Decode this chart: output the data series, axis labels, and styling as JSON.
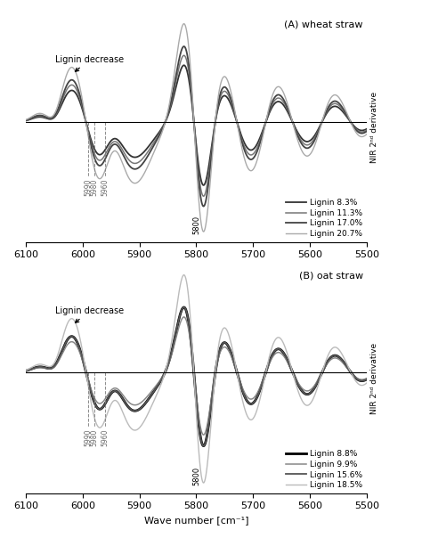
{
  "title_A": "(A) wheat straw",
  "title_B": "(B) oat straw",
  "xlabel": "Wave number [cm⁻¹]",
  "xmin": 5500,
  "xmax": 6100,
  "panel_A": {
    "legend_labels": [
      "Lignin 8.3%",
      "Lignin 11.3%",
      "Lignin 17.0%",
      "Lignin 20.7%"
    ],
    "colors": [
      "#333333",
      "#777777",
      "#444444",
      "#aaaaaa"
    ],
    "linewidths": [
      1.3,
      1.1,
      1.3,
      1.0
    ],
    "annotation_text": "Lignin decrease",
    "vline_labels": [
      "5990",
      "5980",
      "5960"
    ],
    "vline_positions": [
      5990,
      5980,
      5960
    ],
    "peak_label": "5800",
    "scales": [
      0.75,
      0.88,
      1.0,
      1.3
    ]
  },
  "panel_B": {
    "legend_labels": [
      "Lignin 8.8%",
      "Lignin 9.9%",
      "Lignin 15.6%",
      "Lignin 18.5%"
    ],
    "colors": [
      "#000000",
      "#888888",
      "#555555",
      "#bbbbbb"
    ],
    "linewidths": [
      2.0,
      1.1,
      1.3,
      1.0
    ],
    "annotation_text": "Lignin decrease",
    "vline_labels": [
      "5990",
      "5980",
      "5960"
    ],
    "vline_positions": [
      5990,
      5980,
      5960
    ],
    "peak_label": "5800",
    "scales": [
      1.0,
      0.85,
      1.0,
      1.5
    ]
  }
}
